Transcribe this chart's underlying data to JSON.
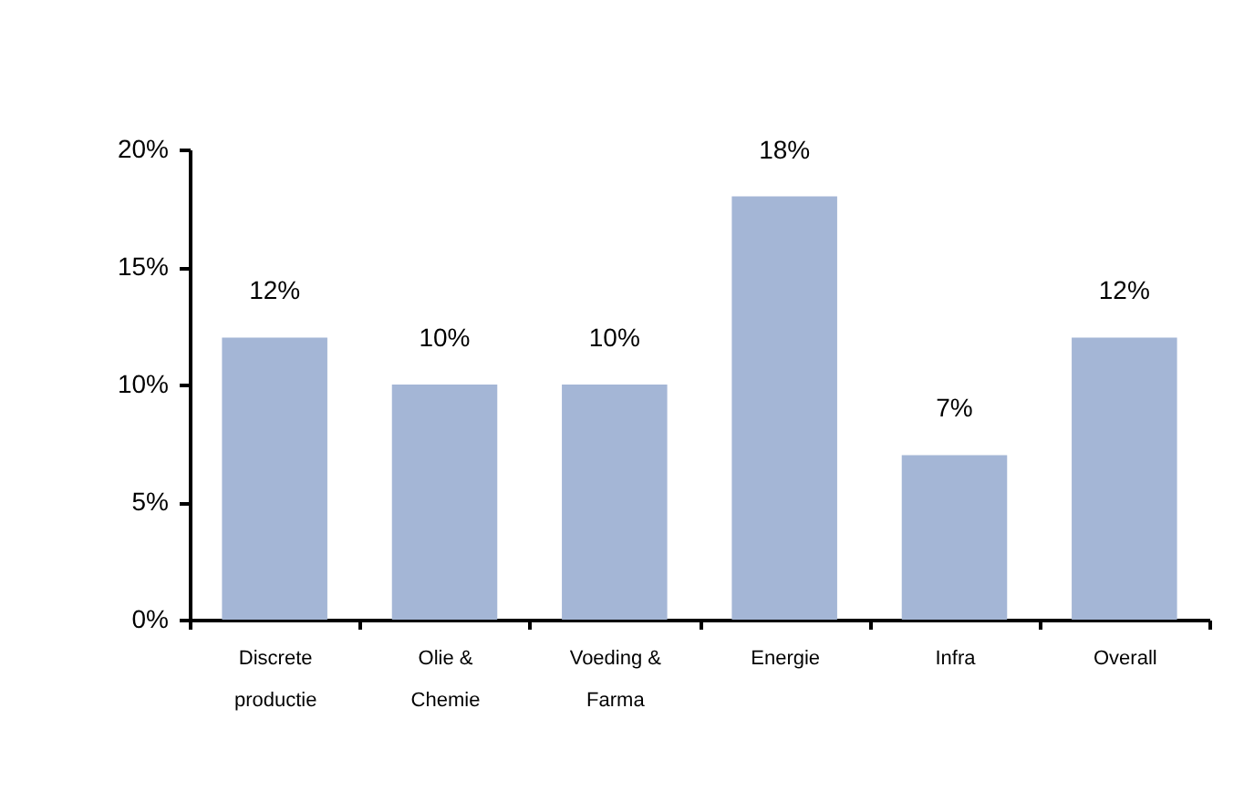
{
  "chart_data": {
    "type": "bar",
    "categories": [
      "Discrete productie",
      "Olie & Chemie",
      "Voeding & Farma",
      "Energie",
      "Infra",
      "Overall"
    ],
    "values": [
      12,
      10,
      10,
      18,
      7,
      12
    ],
    "value_labels": [
      "12%",
      "10%",
      "10%",
      "18%",
      "7%",
      "12%"
    ],
    "color": "#a4b6d6",
    "ylim": [
      0,
      20
    ],
    "yticks": [
      {
        "value": 0,
        "label": "0%"
      },
      {
        "value": 5,
        "label": "5%"
      },
      {
        "value": 10,
        "label": "10%"
      },
      {
        "value": 15,
        "label": "15%"
      },
      {
        "value": 20,
        "label": "20%"
      }
    ],
    "grid": false
  }
}
